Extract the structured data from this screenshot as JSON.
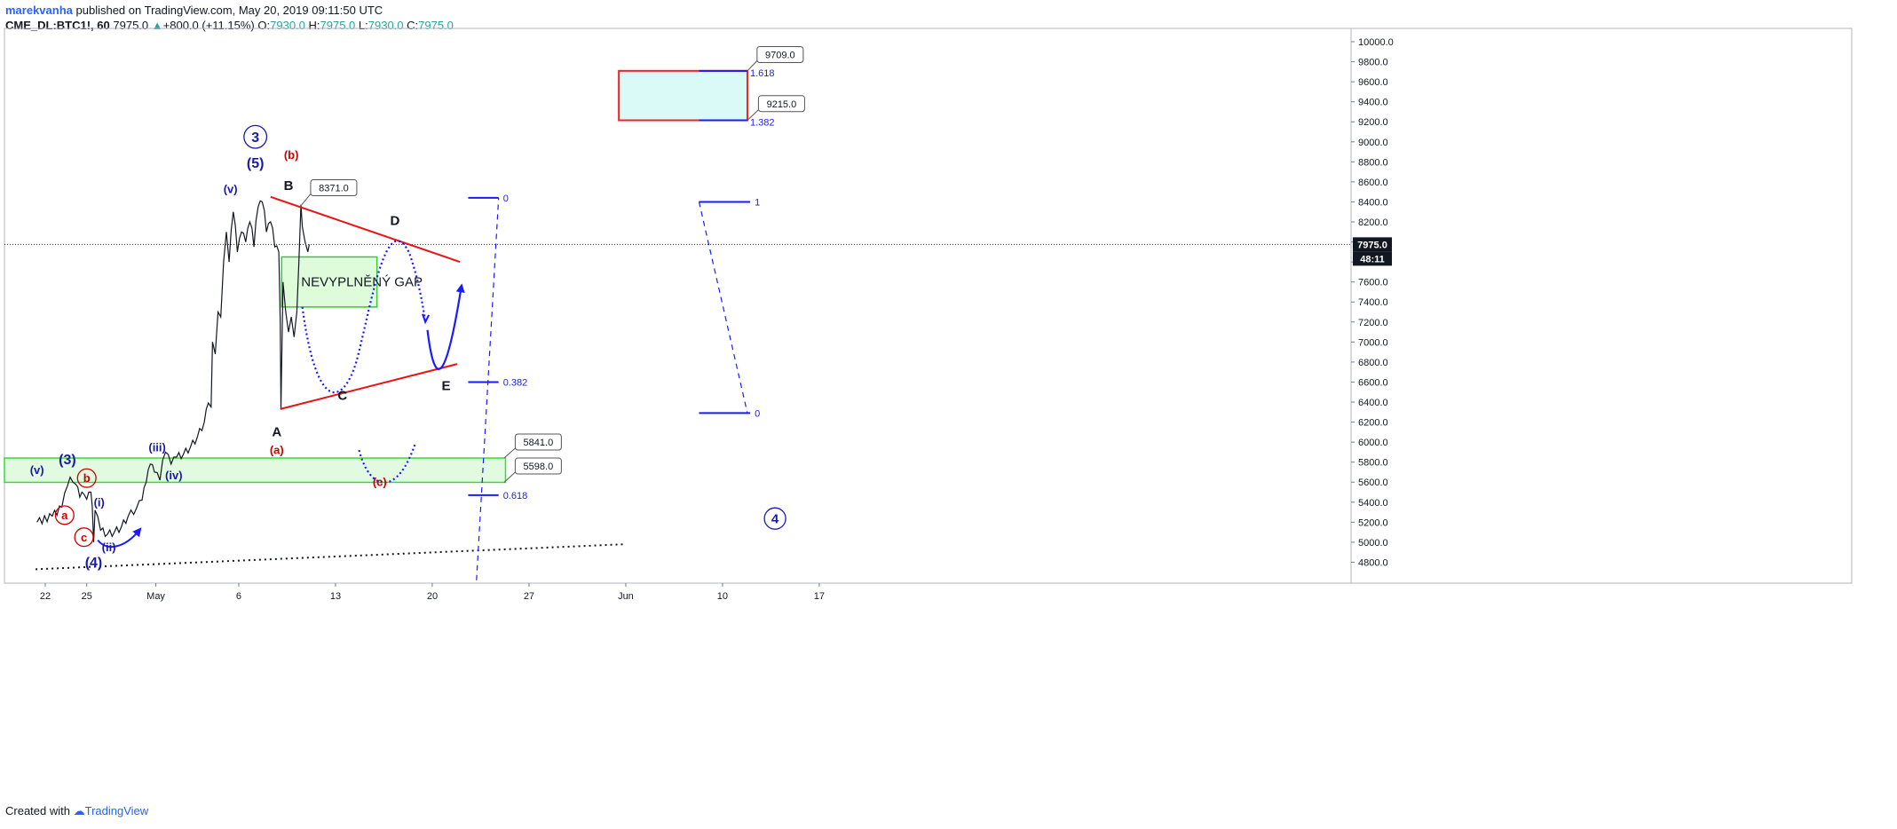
{
  "header": {
    "author": "marekvanha",
    "published_text": " published on TradingView.com, May 20, 2019 09:11:50 UTC",
    "symbol": "CME_DL:BTC1!, 60",
    "last": "7975.0",
    "change": "+800.0 (+11.15%)",
    "o_label": "O:",
    "o_value": "7930.0",
    "h_label": "H:",
    "h_value": "7975.0",
    "l_label": "L:",
    "l_value": "7930.0",
    "c_label": "C:",
    "c_value": "7975.0"
  },
  "footer": {
    "created_with": "Created with",
    "brand": "TradingView"
  },
  "chart_data": {
    "type": "line",
    "title": "",
    "xlabel": "",
    "ylabel": "",
    "ylim": [
      4600,
      10100
    ],
    "y_ticks": [
      4800,
      5000,
      5200,
      5400,
      5600,
      5800,
      6000,
      6200,
      6400,
      6600,
      6800,
      7000,
      7200,
      7400,
      7600,
      7800,
      8000,
      8200,
      8400,
      8600,
      8800,
      9000,
      9200,
      9400,
      9600,
      9800,
      10000
    ],
    "x_ticks": [
      "22",
      "25",
      "May",
      "6",
      "13",
      "20",
      "27",
      "Jun",
      "10",
      "17"
    ],
    "grid": false,
    "last_price": 7975.0,
    "last_price_label": "7975.0",
    "countdown_label": "48:11",
    "price_path": [
      [
        -0.6,
        5200
      ],
      [
        0.5,
        5260
      ],
      [
        1.2,
        5350
      ],
      [
        1.6,
        5560
      ],
      [
        1.8,
        5650
      ],
      [
        2.0,
        5600
      ],
      [
        2.2,
        5580
      ],
      [
        2.5,
        5450
      ],
      [
        2.8,
        5480
      ],
      [
        3.0,
        5430
      ],
      [
        3.3,
        5500
      ],
      [
        3.4,
        5360
      ],
      [
        3.5,
        5000
      ],
      [
        3.6,
        5320
      ],
      [
        4.0,
        5120
      ],
      [
        4.5,
        5080
      ],
      [
        5.0,
        5100
      ],
      [
        5.5,
        5150
      ],
      [
        6.0,
        5260
      ],
      [
        6.6,
        5340
      ],
      [
        7.0,
        5420
      ],
      [
        7.3,
        5600
      ],
      [
        7.6,
        5780
      ],
      [
        7.9,
        5700
      ],
      [
        8.3,
        5620
      ],
      [
        8.7,
        5900
      ],
      [
        9.1,
        5780
      ],
      [
        9.5,
        5850
      ],
      [
        10.0,
        5880
      ],
      [
        10.5,
        5950
      ],
      [
        11.0,
        6050
      ],
      [
        11.5,
        6200
      ],
      [
        11.8,
        6390
      ],
      [
        12.0,
        6350
      ],
      [
        12.1,
        7000
      ],
      [
        12.3,
        6880
      ],
      [
        12.5,
        7300
      ],
      [
        12.7,
        7250
      ],
      [
        12.9,
        7800
      ],
      [
        13.1,
        8100
      ],
      [
        13.3,
        7800
      ],
      [
        13.6,
        8300
      ],
      [
        13.9,
        7900
      ],
      [
        14.2,
        8100
      ],
      [
        14.5,
        8000
      ],
      [
        14.8,
        8200
      ],
      [
        15.1,
        7950
      ],
      [
        15.4,
        8350
      ],
      [
        15.7,
        8400
      ],
      [
        16.0,
        8100
      ],
      [
        16.3,
        8200
      ],
      [
        16.6,
        7950
      ],
      [
        16.9,
        7900
      ],
      [
        17.0,
        7200
      ],
      [
        17.05,
        6330
      ],
      [
        17.2,
        7600
      ],
      [
        17.4,
        7300
      ],
      [
        17.6,
        7100
      ],
      [
        17.8,
        7250
      ],
      [
        18.0,
        7050
      ],
      [
        18.2,
        7300
      ],
      [
        18.35,
        7800
      ],
      [
        18.5,
        8371
      ],
      [
        18.6,
        8150
      ],
      [
        18.8,
        8000
      ],
      [
        19.0,
        7900
      ],
      [
        19.1,
        7975
      ]
    ],
    "triangle_upper": [
      [
        16.3,
        8450
      ],
      [
        30.0,
        7800
      ]
    ],
    "triangle_lower": [
      [
        17.0,
        6330
      ],
      [
        29.8,
        6780
      ]
    ],
    "support_line": [
      [
        -0.7,
        4730
      ],
      [
        42.0,
        4980
      ]
    ],
    "upper_zone": [
      -0.7,
      33.3,
      5598,
      5841
    ],
    "gap_zone": {
      "range": [
        17.1,
        24.0,
        7350,
        7850
      ],
      "label": "NEVYPLNĚNÝ GAP"
    },
    "target_zone": [
      41.5,
      50.8,
      9215,
      9709
    ],
    "fib1": {
      "levels": [
        {
          "price": 8440,
          "label": "0"
        },
        {
          "price": 6600,
          "label": "0.382"
        },
        {
          "price": 5470,
          "label": "0.618"
        }
      ],
      "range": [
        30.6,
        32.8
      ]
    },
    "fib2": {
      "levels": [
        {
          "price": 8400,
          "label": "1"
        },
        {
          "price": 6290,
          "label": "0"
        }
      ],
      "range": [
        47.3,
        51.0
      ]
    },
    "target_lines": [
      {
        "price": 9709,
        "label": "1.618"
      },
      {
        "price": 9215,
        "label": "1.382"
      }
    ],
    "price_tags": [
      {
        "label": "8371.0",
        "x": 18.55,
        "y": 8371,
        "box_x": 19.2,
        "box_y": 8550
      },
      {
        "label": "9709.0",
        "x": 50.8,
        "y": 9709,
        "box_x": 51.5,
        "box_y": 9880
      },
      {
        "label": "9215.0",
        "x": 50.8,
        "y": 9215,
        "box_x": 51.6,
        "box_y": 9390
      },
      {
        "label": "5841.0",
        "x": 33.2,
        "y": 5841,
        "box_x": 34.0,
        "box_y": 6010
      },
      {
        "label": "5598.0",
        "x": 33.2,
        "y": 5598,
        "box_x": 34.0,
        "box_y": 5770
      }
    ],
    "wave_labels": [
      {
        "text": "3",
        "x": 15.2,
        "y": 9000,
        "color": "#1a1aa6",
        "circle": true,
        "size": 16
      },
      {
        "text": "(5)",
        "x": 15.2,
        "y": 8740,
        "color": "#1a1aa6",
        "size": 16
      },
      {
        "text": "(v)",
        "x": 13.4,
        "y": 8490,
        "color": "#1a1aa6",
        "size": 13
      },
      {
        "text": "(b)",
        "x": 17.8,
        "y": 8830,
        "color": "#cc0000",
        "size": 13
      },
      {
        "text": "B",
        "x": 17.6,
        "y": 8520,
        "color": "#131722",
        "size": 15
      },
      {
        "text": "D",
        "x": 25.3,
        "y": 8170,
        "color": "#131722",
        "size": 15
      },
      {
        "text": "C",
        "x": 21.5,
        "y": 6420,
        "color": "#131722",
        "size": 15
      },
      {
        "text": "E",
        "x": 29.0,
        "y": 6520,
        "color": "#131722",
        "size": 15
      },
      {
        "text": "A",
        "x": 16.75,
        "y": 6060,
        "color": "#131722",
        "size": 15
      },
      {
        "text": "(a)",
        "x": 16.75,
        "y": 5880,
        "color": "#cc0000",
        "size": 13
      },
      {
        "text": "(c)",
        "x": 24.2,
        "y": 5560,
        "color": "#cc0000",
        "size": 13
      },
      {
        "text": "(3)",
        "x": 1.6,
        "y": 5780,
        "color": "#1a1aa6",
        "size": 16
      },
      {
        "text": "(v)",
        "x": -0.6,
        "y": 5680,
        "color": "#1a1aa6",
        "size": 13
      },
      {
        "text": "b",
        "x": 3.0,
        "y": 5600,
        "color": "#cc0000",
        "circle": true,
        "size": 13
      },
      {
        "text": "a",
        "x": 1.4,
        "y": 5230,
        "color": "#cc0000",
        "circle": true,
        "size": 13
      },
      {
        "text": "c",
        "x": 2.8,
        "y": 5010,
        "color": "#cc0000",
        "circle": true,
        "size": 13
      },
      {
        "text": "(i)",
        "x": 3.9,
        "y": 5360,
        "color": "#1a1aa6",
        "size": 13
      },
      {
        "text": "(ii)",
        "x": 4.6,
        "y": 4910,
        "color": "#1a1aa6",
        "size": 13
      },
      {
        "text": "(4)",
        "x": 3.5,
        "y": 4750,
        "color": "#1a1aa6",
        "size": 16
      },
      {
        "text": "(iii)",
        "x": 8.1,
        "y": 5910,
        "color": "#1a1aa6",
        "size": 13
      },
      {
        "text": "(iv)",
        "x": 9.3,
        "y": 5630,
        "color": "#1a1aa6",
        "size": 13
      },
      {
        "text": "4",
        "x": 52.8,
        "y": 5190,
        "color": "#1a1aa6",
        "circle": true,
        "size": 15
      }
    ]
  }
}
